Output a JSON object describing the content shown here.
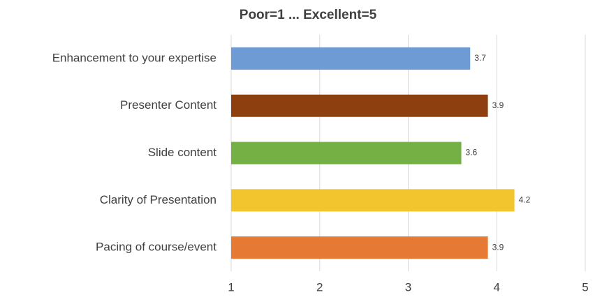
{
  "chart_data": {
    "type": "bar",
    "orientation": "horizontal",
    "title": "Poor=1 ... Excellent=5",
    "categories": [
      "Enhancement to your expertise",
      "Presenter Content",
      "Slide content",
      "Clarity of Presentation",
      "Pacing of course/event"
    ],
    "values": [
      3.7,
      3.9,
      3.6,
      4.2,
      3.9
    ],
    "colors": [
      "#6f9bd4",
      "#8e3f10",
      "#74b043",
      "#f2c42e",
      "#e67a35"
    ],
    "xlim": [
      1,
      5
    ],
    "xticks": [
      1,
      2,
      3,
      4,
      5
    ],
    "grid": true
  }
}
